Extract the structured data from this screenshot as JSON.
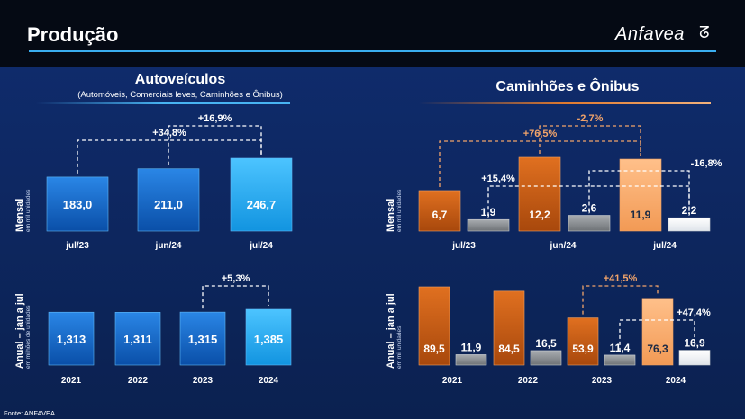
{
  "header": {
    "title": "Produção",
    "logo": "Anfavea",
    "logo_glyph": "ᘔ"
  },
  "left_panel": {
    "title": "Autoveículos",
    "subtitle": "(Automóveis, Comerciais leves, Caminhões e Ônibus)"
  },
  "right_panel": {
    "title": "Caminhões e Ônibus"
  },
  "labels": {
    "mensal": "Mensal",
    "mensal_unit": "em mil unidades",
    "anual": "Anual – jan a jul",
    "anual_unit_left": "em milhões de unidades",
    "anual_unit_right": "em mil unidades"
  },
  "source": "Fonte: ANFAVEA",
  "colors": {
    "blue_dark": "#0d5fc2",
    "blue_light": "#1aa6f0",
    "orange_dark": "#c45b12",
    "orange_light": "#f7a96a",
    "gray": "#8e9296",
    "white_bar": "#ffffff"
  },
  "chart_data": [
    {
      "id": "auto_mensal",
      "type": "bar",
      "categories": [
        "jul/23",
        "jun/24",
        "jul/24"
      ],
      "values": [
        183.0,
        211.0,
        246.7
      ],
      "value_labels": [
        "183,0",
        "211,0",
        "246,7"
      ],
      "annotations": [
        {
          "text": "+34,8%",
          "from": "jul/23",
          "to": "jul/24"
        },
        {
          "text": "+16,9%",
          "from": "jun/24",
          "to": "jul/24"
        }
      ]
    },
    {
      "id": "auto_anual",
      "type": "bar",
      "categories": [
        "2021",
        "2022",
        "2023",
        "2024"
      ],
      "values": [
        1.313,
        1.311,
        1.315,
        1.385
      ],
      "value_labels": [
        "1,313",
        "1,311",
        "1,315",
        "1,385"
      ],
      "annotations": [
        {
          "text": "+5,3%",
          "from": "2023",
          "to": "2024"
        }
      ]
    },
    {
      "id": "cam_mensal",
      "type": "bar",
      "categories": [
        "jul/23",
        "jun/24",
        "jul/24"
      ],
      "series": [
        {
          "values": [
            6.7,
            12.2,
            11.9
          ],
          "value_labels": [
            "6,7",
            "12,2",
            "11,9"
          ]
        },
        {
          "values": [
            1.9,
            2.6,
            2.2
          ],
          "value_labels": [
            "1,9",
            "2,6",
            "2,2"
          ]
        }
      ],
      "annotations": [
        {
          "text": "+76,5%",
          "series": 0,
          "from": "jul/23",
          "to": "jul/24"
        },
        {
          "text": "-2,7%",
          "series": 0,
          "from": "jun/24",
          "to": "jul/24"
        },
        {
          "text": "+15,4%",
          "series": 1,
          "from": "jul/23",
          "to": "jul/24"
        },
        {
          "text": "-16,8%",
          "series": 1,
          "from": "jun/24",
          "to": "jul/24"
        }
      ]
    },
    {
      "id": "cam_anual",
      "type": "bar",
      "categories": [
        "2021",
        "2022",
        "2023",
        "2024"
      ],
      "series": [
        {
          "values": [
            89.5,
            84.5,
            53.9,
            76.3
          ],
          "value_labels": [
            "89,5",
            "84,5",
            "53,9",
            "76,3"
          ]
        },
        {
          "values": [
            11.9,
            16.5,
            11.4,
            16.9
          ],
          "value_labels": [
            "11,9",
            "16,5",
            "11,4",
            "16,9"
          ]
        }
      ],
      "annotations": [
        {
          "text": "+41,5%",
          "series": 0,
          "from": "2023",
          "to": "2024"
        },
        {
          "text": "+47,4%",
          "series": 1,
          "from": "2023",
          "to": "2024"
        }
      ]
    }
  ]
}
